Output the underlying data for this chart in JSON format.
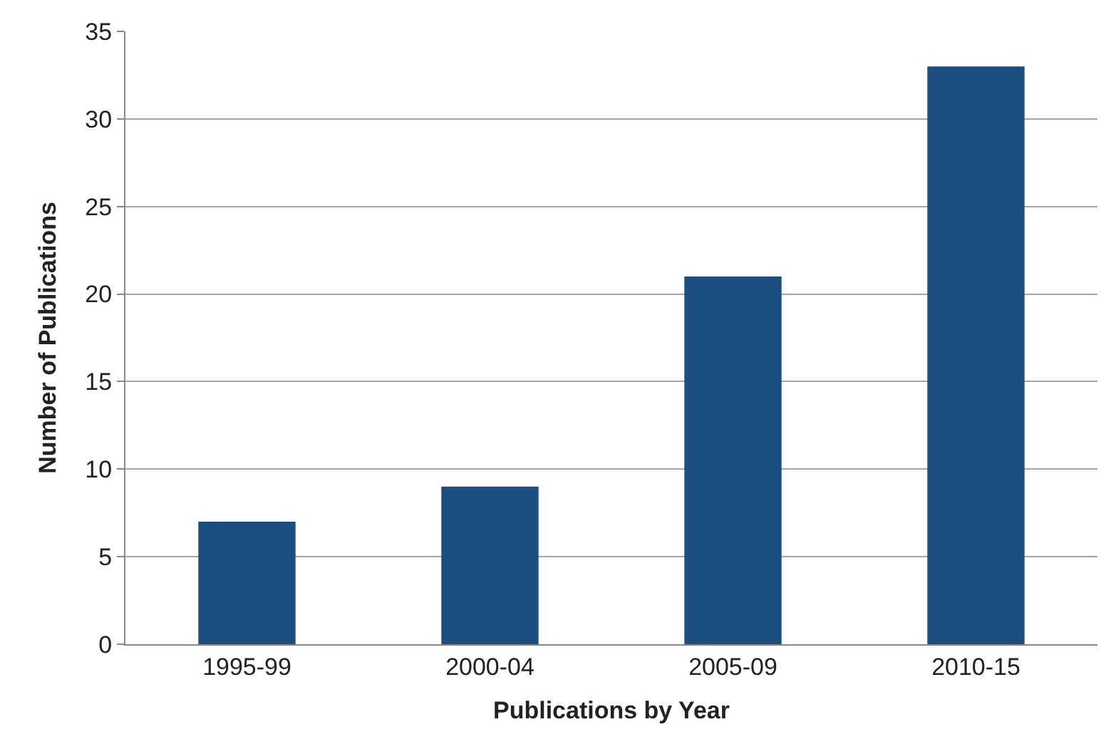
{
  "chart_data": {
    "type": "bar",
    "xlabel": "Publications by Year",
    "ylabel": "Number of Publications",
    "categories": [
      "1995-99",
      "2000-04",
      "2005-09",
      "2010-15"
    ],
    "values": [
      7,
      9,
      21,
      33
    ],
    "color": "#1c4e80",
    "ylim": [
      0,
      35
    ],
    "yticks": [
      0,
      5,
      10,
      15,
      20,
      25,
      30,
      35
    ],
    "grid": "y"
  }
}
